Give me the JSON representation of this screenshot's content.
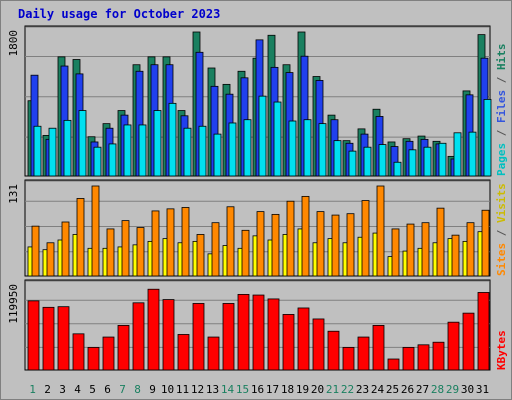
{
  "chart_title": "Daily usage for October 2023",
  "chart_data": [
    {
      "type": "bar",
      "panel": "pages-files-hits",
      "y_tick_label": "1800",
      "ylim": [
        0,
        2200
      ],
      "categories": [
        "1",
        "2",
        "3",
        "4",
        "5",
        "6",
        "7",
        "8",
        "9",
        "10",
        "11",
        "12",
        "13",
        "14",
        "15",
        "16",
        "17",
        "18",
        "19",
        "20",
        "21",
        "22",
        "23",
        "24",
        "25",
        "26",
        "27",
        "28",
        "29",
        "30",
        "31"
      ],
      "side_label": [
        {
          "text": "Pages",
          "color": "#00c0c0"
        },
        {
          "text": " / ",
          "color": "#555555"
        },
        {
          "text": "Files",
          "color": "#3355dd"
        },
        {
          "text": " / ",
          "color": "#555555"
        },
        {
          "text": "Hits",
          "color": "#1a8060"
        }
      ],
      "series": [
        {
          "name": "Hits",
          "color": "#1a8060",
          "values": [
            1150,
            620,
            1820,
            1780,
            600,
            800,
            1000,
            1700,
            1820,
            1820,
            1000,
            2200,
            1650,
            1400,
            1600,
            1800,
            2150,
            1700,
            2250,
            1520,
            930,
            540,
            720,
            1020,
            520,
            570,
            610,
            530,
            300,
            1300,
            2160
          ]
        },
        {
          "name": "Files",
          "color": "#2040ee",
          "values": [
            1540,
            560,
            1680,
            1560,
            520,
            730,
            930,
            1600,
            1700,
            1700,
            920,
            1890,
            1370,
            1250,
            1500,
            2080,
            1660,
            1580,
            1830,
            1460,
            860,
            500,
            640,
            910,
            450,
            530,
            560,
            490,
            260,
            1240,
            1800
          ]
        },
        {
          "name": "Pages",
          "color": "#00e0f0",
          "values": [
            760,
            730,
            850,
            1000,
            440,
            490,
            780,
            780,
            1000,
            1110,
            730,
            760,
            640,
            810,
            860,
            1220,
            1130,
            840,
            860,
            800,
            540,
            380,
            440,
            480,
            210,
            400,
            440,
            500,
            660,
            670,
            1170
          ]
        }
      ]
    },
    {
      "type": "bar",
      "panel": "sites-visits",
      "y_tick_label": "131",
      "ylim": [
        0,
        130
      ],
      "categories": [
        "1",
        "2",
        "3",
        "4",
        "5",
        "6",
        "7",
        "8",
        "9",
        "10",
        "11",
        "12",
        "13",
        "14",
        "15",
        "16",
        "17",
        "18",
        "19",
        "20",
        "21",
        "22",
        "23",
        "24",
        "25",
        "26",
        "27",
        "28",
        "29",
        "30",
        "31"
      ],
      "side_label": [
        {
          "text": "Sites",
          "color": "#ff8800"
        },
        {
          "text": " / ",
          "color": "#555555"
        },
        {
          "text": "Visits",
          "color": "#ccbb00"
        }
      ],
      "series": [
        {
          "name": "Visits",
          "color": "#ffff00",
          "values": [
            42,
            38,
            52,
            60,
            40,
            40,
            42,
            45,
            50,
            54,
            48,
            50,
            32,
            44,
            40,
            58,
            52,
            60,
            68,
            48,
            54,
            48,
            56,
            62,
            28,
            36,
            40,
            48,
            54,
            50,
            64
          ]
        },
        {
          "name": "Sites",
          "color": "#ff8800",
          "values": [
            72,
            48,
            78,
            112,
            130,
            68,
            80,
            70,
            94,
            97,
            99,
            60,
            77,
            100,
            66,
            93,
            89,
            108,
            115,
            93,
            88,
            90,
            109,
            136,
            68,
            75,
            77,
            98,
            59,
            77,
            95
          ]
        }
      ]
    },
    {
      "type": "bar",
      "panel": "kbytes",
      "y_tick_label": "119950",
      "ylim": [
        0,
        130000
      ],
      "categories": [
        "1",
        "2",
        "3",
        "4",
        "5",
        "6",
        "7",
        "8",
        "9",
        "10",
        "11",
        "12",
        "13",
        "14",
        "15",
        "16",
        "17",
        "18",
        "19",
        "20",
        "21",
        "22",
        "23",
        "24",
        "25",
        "26",
        "27",
        "28",
        "29",
        "30",
        "31"
      ],
      "side_label": [
        {
          "text": "KBytes",
          "color": "#ff0000"
        }
      ],
      "series": [
        {
          "name": "KBytes",
          "color": "#ff0000",
          "values": [
            107000,
            97000,
            98000,
            56000,
            35000,
            51000,
            69000,
            104000,
            125000,
            109000,
            55000,
            103000,
            51000,
            103000,
            117000,
            116000,
            110000,
            86000,
            96000,
            79000,
            60000,
            35000,
            51000,
            69000,
            17000,
            35000,
            39000,
            43000,
            74000,
            88000,
            120000
          ]
        }
      ]
    }
  ],
  "x_label_colors": [
    "#1a8060",
    "#000000",
    "#000000",
    "#000000",
    "#000000",
    "#000000",
    "#1a8060",
    "#1a8060",
    "#000000",
    "#000000",
    "#000000",
    "#000000",
    "#000000",
    "#1a8060",
    "#1a8060",
    "#000000",
    "#000000",
    "#000000",
    "#000000",
    "#000000",
    "#1a8060",
    "#1a8060",
    "#000000",
    "#000000",
    "#000000",
    "#000000",
    "#000000",
    "#1a8060",
    "#1a8060",
    "#000000",
    "#000000"
  ]
}
